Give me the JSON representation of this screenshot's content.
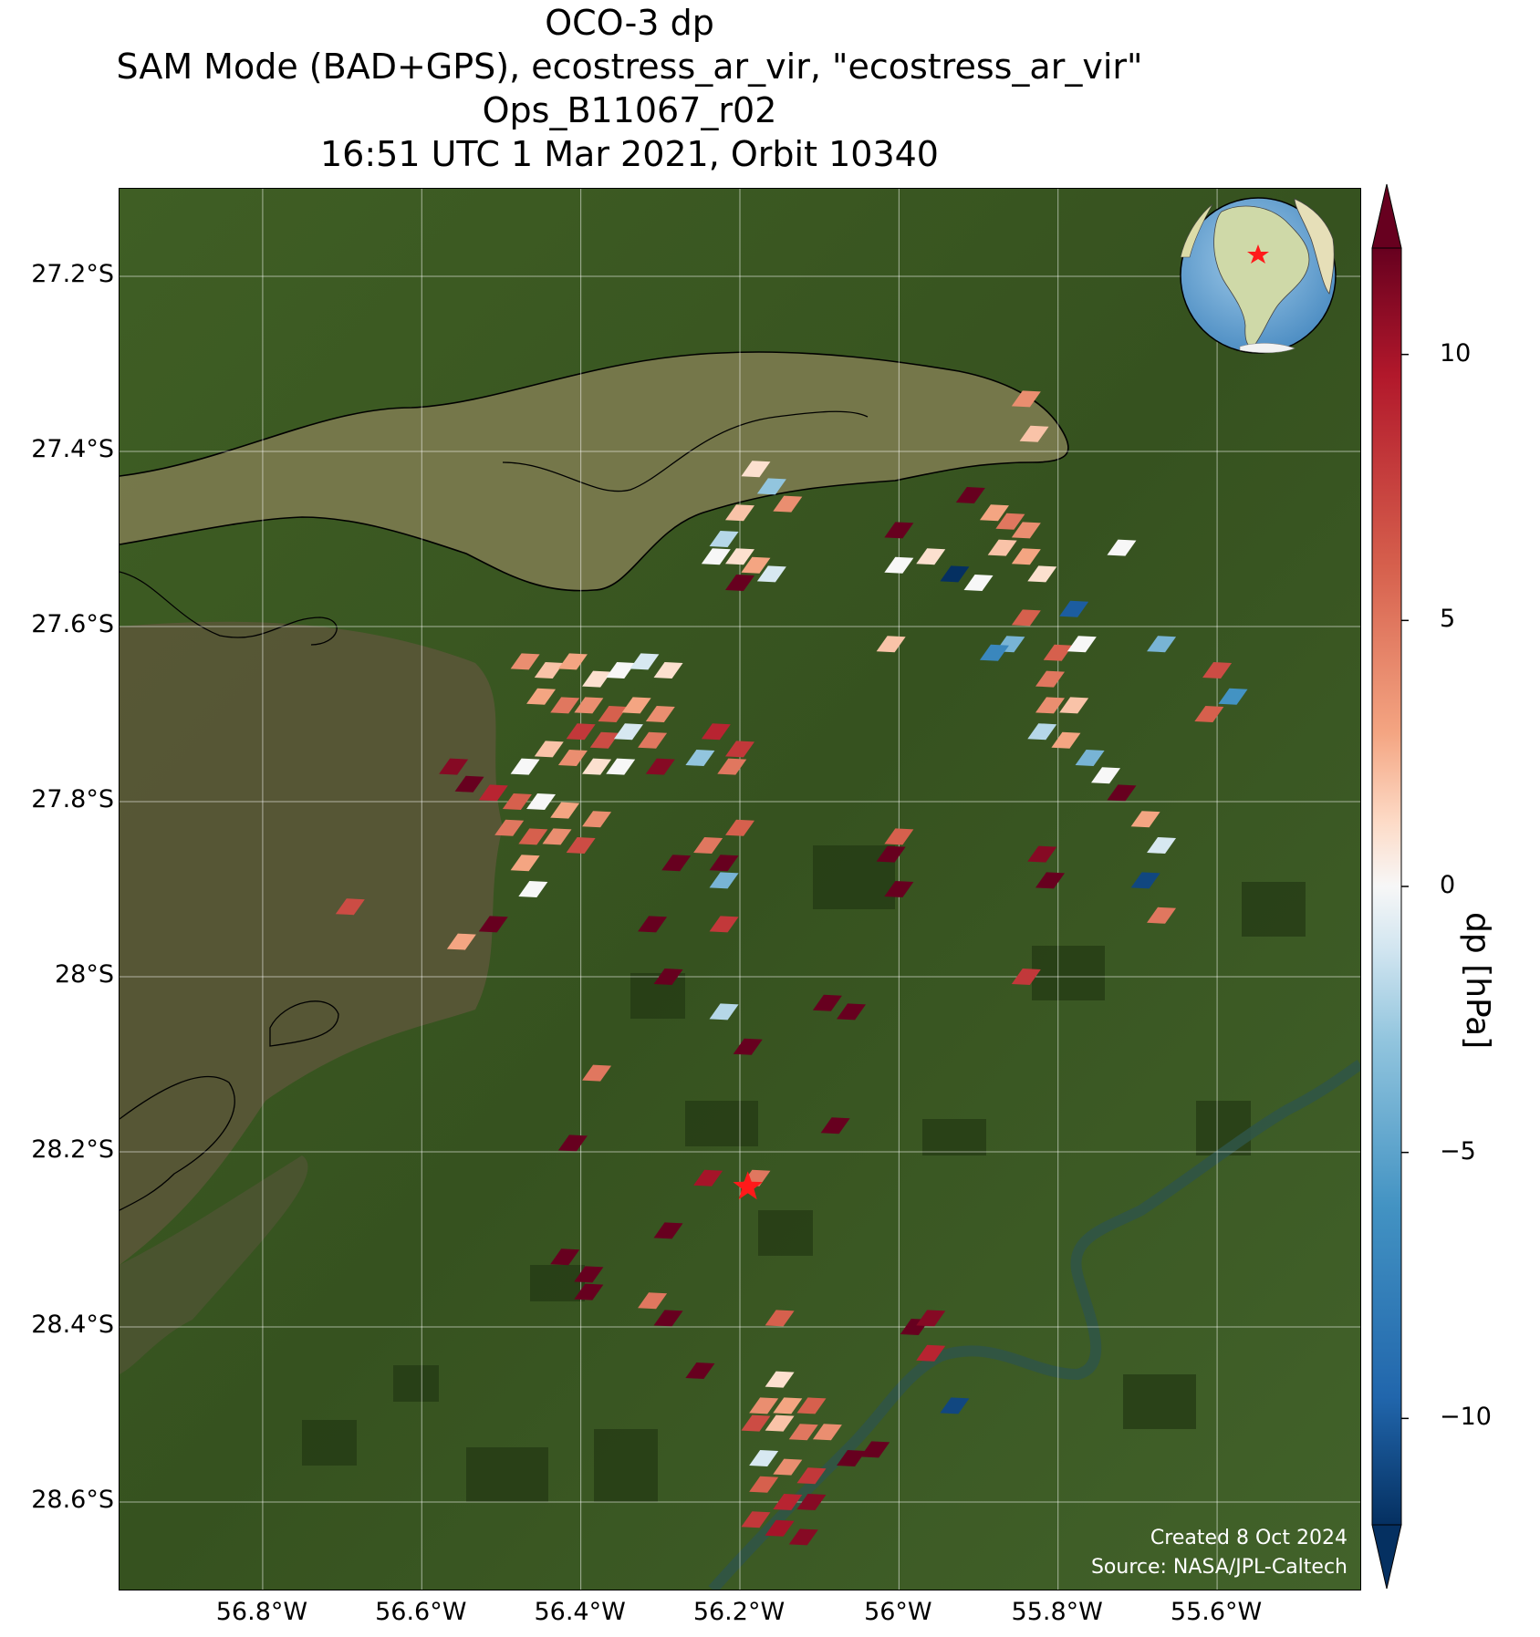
{
  "title": {
    "line1": "OCO-3 dp",
    "line2": "SAM Mode (BAD+GPS), ecostress_ar_vir, \"ecostress_ar_vir\"",
    "line3": "Ops_B11067_r02",
    "line4": "16:51 UTC 1 Mar 2021, Orbit 10340"
  },
  "credit": {
    "created": "Created 8 Oct 2024",
    "source": "Source: NASA/JPL-Caltech"
  },
  "colors": {
    "land_dark": "#2f4a1c",
    "land": "#4a6a2c",
    "wetland": "#5b5a3a",
    "river": "#7a7a52",
    "target_marker": "#ff1a1a"
  },
  "chart_data": {
    "type": "heatmap",
    "title": "OCO-3 dp",
    "lon_range": [
      -56.98,
      -55.42
    ],
    "lat_range": [
      -28.7,
      -27.1
    ],
    "lon_ticks": [
      "56.8°W",
      "56.6°W",
      "56.4°W",
      "56.2°W",
      "56°W",
      "55.8°W",
      "55.6°W"
    ],
    "lon_tick_values": [
      -56.8,
      -56.6,
      -56.4,
      -56.2,
      -56.0,
      -55.8,
      -55.6
    ],
    "lat_ticks": [
      "27.2°S",
      "27.4°S",
      "27.6°S",
      "27.8°S",
      "28°S",
      "28.2°S",
      "28.4°S",
      "28.6°S"
    ],
    "lat_tick_values": [
      -27.2,
      -27.4,
      -27.6,
      -27.8,
      -28.0,
      -28.2,
      -28.4,
      -28.6
    ],
    "grid": true,
    "colorbar": {
      "label": "dp [hPa]",
      "range": [
        -12,
        12
      ],
      "ticks": [
        10,
        5,
        0,
        -5,
        -10
      ],
      "tick_labels": [
        "10",
        "5",
        "0",
        "−5",
        "−10"
      ],
      "cmap": "RdBu_r",
      "extend": "both"
    },
    "target": {
      "lon": -56.19,
      "lat": -28.24
    },
    "inset": "globe-south-america",
    "soundings": [
      {
        "lon": -56.18,
        "lat": -27.42,
        "dp": 1
      },
      {
        "lon": -56.16,
        "lat": -27.44,
        "dp": -3
      },
      {
        "lon": -56.14,
        "lat": -27.46,
        "dp": 4
      },
      {
        "lon": -56.2,
        "lat": -27.47,
        "dp": 2
      },
      {
        "lon": -56.22,
        "lat": -27.5,
        "dp": -2
      },
      {
        "lon": -56.2,
        "lat": -27.52,
        "dp": 1
      },
      {
        "lon": -56.18,
        "lat": -27.53,
        "dp": 3
      },
      {
        "lon": -56.16,
        "lat": -27.54,
        "dp": -1
      },
      {
        "lon": -56.2,
        "lat": -27.55,
        "dp": 12
      },
      {
        "lon": -56.23,
        "lat": -27.52,
        "dp": 0
      },
      {
        "lon": -56.47,
        "lat": -27.64,
        "dp": 4
      },
      {
        "lon": -56.44,
        "lat": -27.65,
        "dp": 2
      },
      {
        "lon": -56.41,
        "lat": -27.64,
        "dp": 3
      },
      {
        "lon": -56.38,
        "lat": -27.66,
        "dp": 1
      },
      {
        "lon": -56.35,
        "lat": -27.65,
        "dp": 0
      },
      {
        "lon": -56.32,
        "lat": -27.64,
        "dp": -1
      },
      {
        "lon": -56.29,
        "lat": -27.65,
        "dp": 1
      },
      {
        "lon": -56.45,
        "lat": -27.68,
        "dp": 3
      },
      {
        "lon": -56.42,
        "lat": -27.69,
        "dp": 5
      },
      {
        "lon": -56.39,
        "lat": -27.69,
        "dp": 4
      },
      {
        "lon": -56.36,
        "lat": -27.7,
        "dp": 6
      },
      {
        "lon": -56.33,
        "lat": -27.69,
        "dp": 3
      },
      {
        "lon": -56.3,
        "lat": -27.7,
        "dp": 4
      },
      {
        "lon": -56.4,
        "lat": -27.72,
        "dp": 8
      },
      {
        "lon": -56.37,
        "lat": -27.73,
        "dp": 7
      },
      {
        "lon": -56.34,
        "lat": -27.72,
        "dp": -1
      },
      {
        "lon": -56.31,
        "lat": -27.73,
        "dp": 5
      },
      {
        "lon": -56.44,
        "lat": -27.74,
        "dp": 2
      },
      {
        "lon": -56.41,
        "lat": -27.75,
        "dp": 4
      },
      {
        "lon": -56.47,
        "lat": -27.76,
        "dp": 0
      },
      {
        "lon": -56.38,
        "lat": -27.76,
        "dp": 1
      },
      {
        "lon": -56.35,
        "lat": -27.76,
        "dp": 0
      },
      {
        "lon": -56.3,
        "lat": -27.76,
        "dp": 11
      },
      {
        "lon": -56.23,
        "lat": -27.72,
        "dp": 9
      },
      {
        "lon": -56.2,
        "lat": -27.74,
        "dp": 8
      },
      {
        "lon": -56.25,
        "lat": -27.75,
        "dp": -3
      },
      {
        "lon": -56.21,
        "lat": -27.76,
        "dp": 5
      },
      {
        "lon": -56.56,
        "lat": -27.76,
        "dp": 11
      },
      {
        "lon": -56.54,
        "lat": -27.78,
        "dp": 12
      },
      {
        "lon": -56.51,
        "lat": -27.79,
        "dp": 9
      },
      {
        "lon": -56.48,
        "lat": -27.8,
        "dp": 6
      },
      {
        "lon": -56.45,
        "lat": -27.8,
        "dp": 0
      },
      {
        "lon": -56.42,
        "lat": -27.81,
        "dp": 3
      },
      {
        "lon": -56.38,
        "lat": -27.82,
        "dp": 4
      },
      {
        "lon": -56.49,
        "lat": -27.83,
        "dp": 5
      },
      {
        "lon": -56.46,
        "lat": -27.84,
        "dp": 6
      },
      {
        "lon": -56.43,
        "lat": -27.84,
        "dp": 4
      },
      {
        "lon": -56.4,
        "lat": -27.85,
        "dp": 7
      },
      {
        "lon": -56.47,
        "lat": -27.87,
        "dp": 3
      },
      {
        "lon": -56.46,
        "lat": -27.9,
        "dp": 0
      },
      {
        "lon": -56.2,
        "lat": -27.83,
        "dp": 6
      },
      {
        "lon": -56.24,
        "lat": -27.85,
        "dp": 5
      },
      {
        "lon": -56.22,
        "lat": -27.87,
        "dp": 12
      },
      {
        "lon": -56.28,
        "lat": -27.87,
        "dp": 12
      },
      {
        "lon": -56.22,
        "lat": -27.89,
        "dp": -4
      },
      {
        "lon": -56.69,
        "lat": -27.92,
        "dp": 7
      },
      {
        "lon": -56.51,
        "lat": -27.94,
        "dp": 12
      },
      {
        "lon": -56.55,
        "lat": -27.96,
        "dp": 3
      },
      {
        "lon": -56.31,
        "lat": -27.94,
        "dp": 12
      },
      {
        "lon": -56.22,
        "lat": -27.94,
        "dp": 8
      },
      {
        "lon": -56.29,
        "lat": -28.0,
        "dp": 12
      },
      {
        "lon": -56.09,
        "lat": -28.03,
        "dp": 12
      },
      {
        "lon": -56.06,
        "lat": -28.04,
        "dp": 12
      },
      {
        "lon": -56.22,
        "lat": -28.04,
        "dp": -2
      },
      {
        "lon": -56.19,
        "lat": -28.08,
        "dp": 12
      },
      {
        "lon": -56.38,
        "lat": -28.11,
        "dp": 5
      },
      {
        "lon": -56.08,
        "lat": -28.17,
        "dp": 12
      },
      {
        "lon": -56.41,
        "lat": -28.19,
        "dp": 12
      },
      {
        "lon": -56.24,
        "lat": -28.23,
        "dp": 10
      },
      {
        "lon": -56.18,
        "lat": -28.23,
        "dp": 5
      },
      {
        "lon": -56.29,
        "lat": -28.29,
        "dp": 12
      },
      {
        "lon": -56.42,
        "lat": -28.32,
        "dp": 12
      },
      {
        "lon": -56.39,
        "lat": -28.34,
        "dp": 12
      },
      {
        "lon": -56.39,
        "lat": -28.36,
        "dp": 12
      },
      {
        "lon": -56.31,
        "lat": -28.37,
        "dp": 5
      },
      {
        "lon": -56.29,
        "lat": -28.39,
        "dp": 12
      },
      {
        "lon": -56.15,
        "lat": -28.39,
        "dp": 6
      },
      {
        "lon": -56.25,
        "lat": -28.45,
        "dp": 12
      },
      {
        "lon": -55.98,
        "lat": -28.4,
        "dp": 12
      },
      {
        "lon": -55.96,
        "lat": -28.39,
        "dp": 11
      },
      {
        "lon": -55.96,
        "lat": -28.43,
        "dp": 9
      },
      {
        "lon": -56.15,
        "lat": -28.46,
        "dp": 1
      },
      {
        "lon": -56.17,
        "lat": -28.49,
        "dp": 4
      },
      {
        "lon": -56.14,
        "lat": -28.49,
        "dp": 3
      },
      {
        "lon": -56.11,
        "lat": -28.49,
        "dp": 6
      },
      {
        "lon": -56.18,
        "lat": -28.51,
        "dp": 7
      },
      {
        "lon": -56.15,
        "lat": -28.51,
        "dp": 2
      },
      {
        "lon": -56.12,
        "lat": -28.52,
        "dp": 5
      },
      {
        "lon": -56.09,
        "lat": -28.52,
        "dp": 4
      },
      {
        "lon": -56.06,
        "lat": -28.55,
        "dp": 12
      },
      {
        "lon": -56.03,
        "lat": -28.54,
        "dp": 12
      },
      {
        "lon": -56.17,
        "lat": -28.55,
        "dp": -1
      },
      {
        "lon": -56.14,
        "lat": -28.56,
        "dp": 4
      },
      {
        "lon": -56.11,
        "lat": -28.57,
        "dp": 8
      },
      {
        "lon": -56.17,
        "lat": -28.58,
        "dp": 6
      },
      {
        "lon": -56.14,
        "lat": -28.6,
        "dp": 9
      },
      {
        "lon": -56.11,
        "lat": -28.6,
        "dp": 11
      },
      {
        "lon": -56.18,
        "lat": -28.62,
        "dp": 8
      },
      {
        "lon": -56.15,
        "lat": -28.63,
        "dp": 10
      },
      {
        "lon": -56.12,
        "lat": -28.64,
        "dp": 11
      },
      {
        "lon": -55.93,
        "lat": -28.49,
        "dp": -11
      },
      {
        "lon": -55.84,
        "lat": -27.34,
        "dp": 4
      },
      {
        "lon": -55.83,
        "lat": -27.38,
        "dp": 2
      },
      {
        "lon": -55.91,
        "lat": -27.45,
        "dp": 12
      },
      {
        "lon": -55.88,
        "lat": -27.47,
        "dp": 3
      },
      {
        "lon": -55.86,
        "lat": -27.48,
        "dp": 5
      },
      {
        "lon": -55.84,
        "lat": -27.49,
        "dp": 4
      },
      {
        "lon": -55.87,
        "lat": -27.51,
        "dp": 2
      },
      {
        "lon": -55.84,
        "lat": -27.52,
        "dp": 3
      },
      {
        "lon": -55.82,
        "lat": -27.54,
        "dp": 1
      },
      {
        "lon": -55.9,
        "lat": -27.55,
        "dp": 0
      },
      {
        "lon": -55.96,
        "lat": -27.52,
        "dp": 1
      },
      {
        "lon": -55.93,
        "lat": -27.54,
        "dp": -12
      },
      {
        "lon": -56.0,
        "lat": -27.49,
        "dp": 12
      },
      {
        "lon": -56.0,
        "lat": -27.53,
        "dp": 0
      },
      {
        "lon": -55.78,
        "lat": -27.58,
        "dp": -10
      },
      {
        "lon": -55.84,
        "lat": -27.59,
        "dp": 6
      },
      {
        "lon": -55.86,
        "lat": -27.62,
        "dp": -4
      },
      {
        "lon": -55.88,
        "lat": -27.63,
        "dp": -7
      },
      {
        "lon": -55.8,
        "lat": -27.63,
        "dp": 6
      },
      {
        "lon": -55.77,
        "lat": -27.62,
        "dp": 0
      },
      {
        "lon": -55.81,
        "lat": -27.66,
        "dp": 5
      },
      {
        "lon": -55.81,
        "lat": -27.69,
        "dp": 4
      },
      {
        "lon": -55.78,
        "lat": -27.69,
        "dp": 2
      },
      {
        "lon": -55.82,
        "lat": -27.72,
        "dp": -2
      },
      {
        "lon": -55.79,
        "lat": -27.73,
        "dp": 3
      },
      {
        "lon": -55.76,
        "lat": -27.75,
        "dp": -4
      },
      {
        "lon": -55.74,
        "lat": -27.77,
        "dp": 0
      },
      {
        "lon": -55.72,
        "lat": -27.79,
        "dp": 12
      },
      {
        "lon": -55.69,
        "lat": -27.82,
        "dp": 3
      },
      {
        "lon": -55.67,
        "lat": -27.85,
        "dp": -1
      },
      {
        "lon": -55.72,
        "lat": -27.51,
        "dp": 0
      },
      {
        "lon": -55.67,
        "lat": -27.62,
        "dp": -4
      },
      {
        "lon": -55.6,
        "lat": -27.65,
        "dp": 7
      },
      {
        "lon": -55.58,
        "lat": -27.68,
        "dp": -6
      },
      {
        "lon": -55.61,
        "lat": -27.7,
        "dp": 6
      },
      {
        "lon": -55.82,
        "lat": -27.86,
        "dp": 11
      },
      {
        "lon": -55.81,
        "lat": -27.89,
        "dp": 12
      },
      {
        "lon": -55.69,
        "lat": -27.89,
        "dp": -11
      },
      {
        "lon": -55.67,
        "lat": -27.93,
        "dp": 5
      },
      {
        "lon": -56.0,
        "lat": -27.84,
        "dp": 6
      },
      {
        "lon": -56.01,
        "lat": -27.86,
        "dp": 12
      },
      {
        "lon": -56.0,
        "lat": -27.9,
        "dp": 12
      },
      {
        "lon": -55.84,
        "lat": -28.0,
        "dp": 8
      },
      {
        "lon": -56.01,
        "lat": -27.62,
        "dp": 2
      }
    ]
  }
}
